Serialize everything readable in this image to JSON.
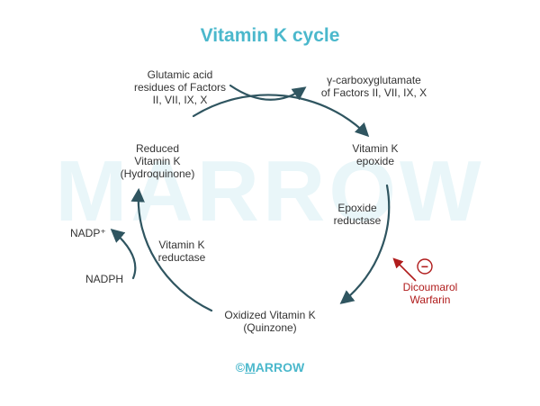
{
  "title": "Vitamin K cycle",
  "watermark": "MARROW",
  "copyright": {
    "symbol": "©",
    "first_letter": "M",
    "rest": "ARROW"
  },
  "labels": {
    "glutamic": [
      "Glutamic acid",
      "residues of Factors",
      "II, VII, IX, X"
    ],
    "carboxy": [
      "γ-carboxyglutamate",
      "of Factors II, VII, IX, X"
    ],
    "epoxide": [
      "Vitamin K",
      "epoxide"
    ],
    "epoxide_reductase": [
      "Epoxide",
      "reductase"
    ],
    "reduced": [
      "Reduced",
      "Vitamin K",
      "(Hydroquinone)"
    ],
    "vk_reductase": [
      "Vitamin K",
      "reductase"
    ],
    "oxidized": [
      "Oxidized Vitamin K",
      "(Quinzone)"
    ],
    "nadp": "NADP⁺",
    "nadph": "NADPH",
    "inhibitors": [
      "Dicoumarol",
      "Warfarin"
    ],
    "inhibit_symbol": "−"
  },
  "colors": {
    "title": "#4bb8cc",
    "arrow": "#2f5560",
    "inhibitor": "#b01c1c",
    "watermark": "#e9f6f9"
  }
}
